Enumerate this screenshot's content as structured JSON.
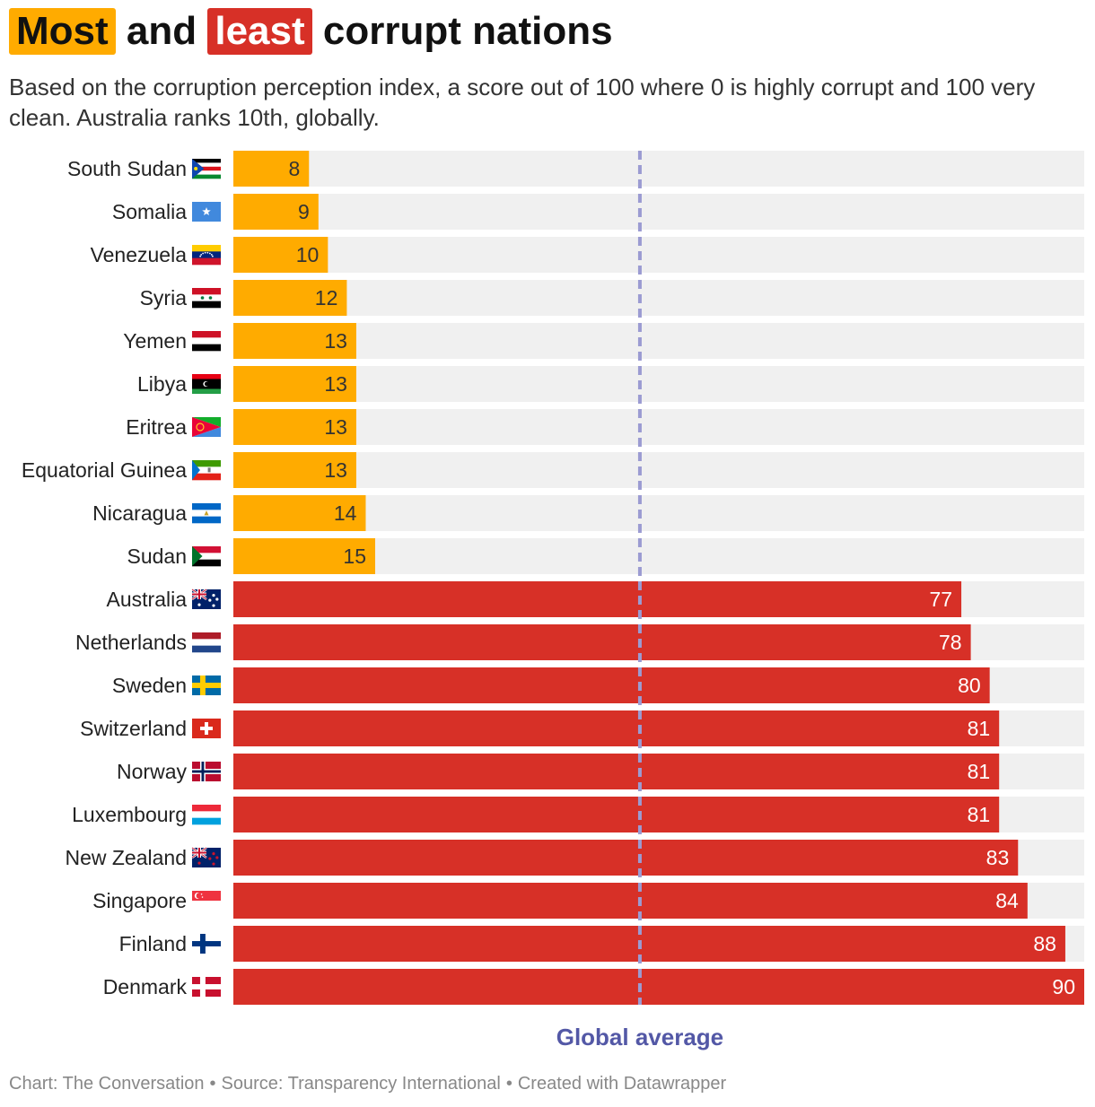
{
  "title": {
    "word_most": "Most",
    "and": "and",
    "word_least": "least",
    "rest": "corrupt nations"
  },
  "subtitle": "Based on the corruption perception index, a score out of 100 where 0 is highly corrupt and 100 very clean. Australia ranks 10th, globally.",
  "colors": {
    "most_corrupt": "#ffab00",
    "least_corrupt": "#d73027",
    "track": "#f0f0f0",
    "average_line": "#9b9bd2",
    "average_label": "#5358a6"
  },
  "chart_data": {
    "type": "bar",
    "orientation": "horizontal",
    "xlim": [
      0,
      90
    ],
    "categories": [
      "South Sudan",
      "Somalia",
      "Venezuela",
      "Syria",
      "Yemen",
      "Libya",
      "Eritrea",
      "Equatorial Guinea",
      "Nicaragua",
      "Sudan",
      "Australia",
      "Netherlands",
      "Sweden",
      "Switzerland",
      "Norway",
      "Luxembourg",
      "New Zealand",
      "Singapore",
      "Finland",
      "Denmark"
    ],
    "values": [
      8,
      9,
      10,
      12,
      13,
      13,
      13,
      13,
      14,
      15,
      77,
      78,
      80,
      81,
      81,
      81,
      83,
      84,
      88,
      90
    ],
    "groups": [
      "most",
      "most",
      "most",
      "most",
      "most",
      "most",
      "most",
      "most",
      "most",
      "most",
      "least",
      "least",
      "least",
      "least",
      "least",
      "least",
      "least",
      "least",
      "least",
      "least"
    ],
    "flags": [
      "south-sudan-flag-icon",
      "somalia-flag-icon",
      "venezuela-flag-icon",
      "syria-flag-icon",
      "yemen-flag-icon",
      "libya-flag-icon",
      "eritrea-flag-icon",
      "equatorial-guinea-flag-icon",
      "nicaragua-flag-icon",
      "sudan-flag-icon",
      "australia-flag-icon",
      "netherlands-flag-icon",
      "sweden-flag-icon",
      "switzerland-flag-icon",
      "norway-flag-icon",
      "luxembourg-flag-icon",
      "new-zealand-flag-icon",
      "singapore-flag-icon",
      "finland-flag-icon",
      "denmark-flag-icon"
    ],
    "reference_line": {
      "value": 43,
      "label": "Global average"
    }
  },
  "footer": {
    "chart_credit": "Chart: The Conversation",
    "source": "Source: Transparency International",
    "created_with": "Created with Datawrapper",
    "separator": "•"
  }
}
